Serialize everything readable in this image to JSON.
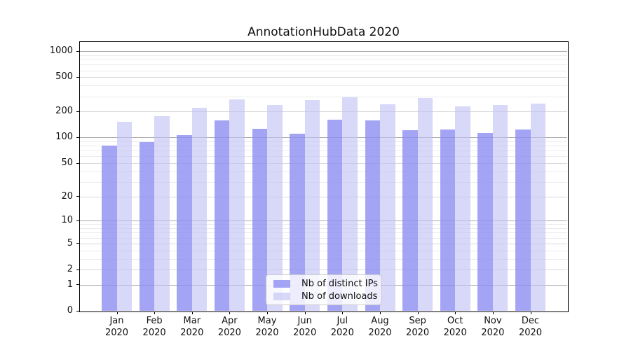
{
  "title": "AnnotationHubData 2020",
  "chart_data": {
    "type": "bar",
    "title": "AnnotationHubData 2020",
    "categories": [
      "Jan 2020",
      "Feb 2020",
      "Mar 2020",
      "Apr 2020",
      "May 2020",
      "Jun 2020",
      "Jul 2020",
      "Aug 2020",
      "Sep 2020",
      "Oct 2020",
      "Nov 2020",
      "Dec 2020"
    ],
    "series": [
      {
        "name": "Nb of distinct IPs",
        "color": "rgba(141,141,243,0.8)",
        "values": [
          80,
          88,
          107,
          158,
          127,
          110,
          160,
          159,
          121,
          123,
          112,
          125
        ]
      },
      {
        "name": "Nb of downloads",
        "color": "rgba(192,192,244,0.62)",
        "values": [
          152,
          176,
          221,
          277,
          238,
          274,
          295,
          245,
          286,
          230,
          237,
          246
        ]
      }
    ],
    "xlabel": "",
    "ylabel": "",
    "yscale": "log1p",
    "ylim": [
      0,
      1280
    ],
    "y_ticks": [
      0,
      1,
      2,
      5,
      10,
      20,
      50,
      100,
      200,
      500,
      1000
    ],
    "y_minor_ticks": [
      3,
      4,
      6,
      7,
      8,
      9,
      30,
      40,
      60,
      70,
      80,
      90,
      300,
      400,
      600,
      700,
      800,
      900
    ],
    "grid": true,
    "legend_position": "lower center"
  },
  "styles": {
    "background": "#ffffff",
    "spine_color": "#000000",
    "grid_decade_color": "#ababab",
    "grid_major_color": "#d8d8d8",
    "grid_minor_color": "#ebebeb",
    "text_color": "#111111",
    "legend_bg": "rgba(255,255,255,0.8)",
    "legend_border": "#cccccc"
  }
}
